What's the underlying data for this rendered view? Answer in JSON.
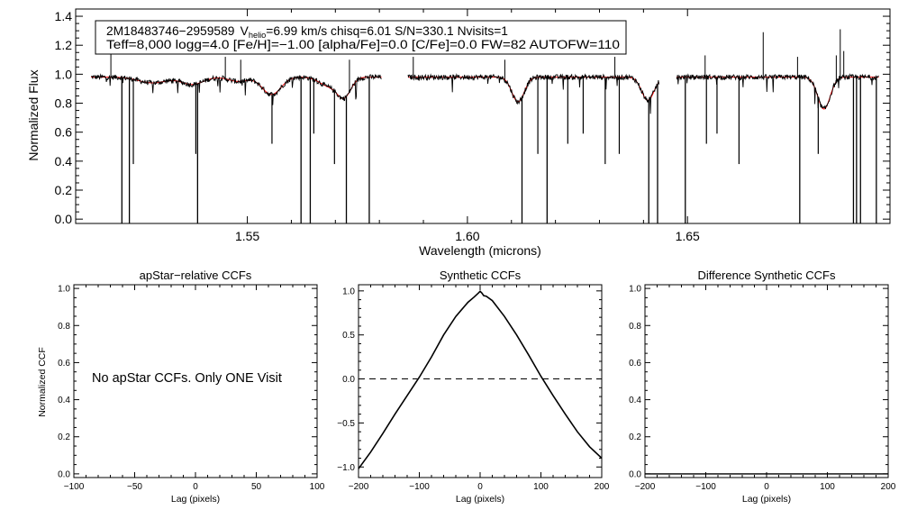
{
  "chart_data": [
    {
      "type": "line",
      "id": "spectrum",
      "xlabel": "Wavelength (microns)",
      "ylabel": "Normalized Flux",
      "xlim": [
        1.511,
        1.696
      ],
      "ylim": [
        -0.03,
        1.45
      ],
      "xticks": [
        1.55,
        1.6,
        1.65
      ],
      "xtick_labels": [
        "1.55",
        "1.60",
        "1.65"
      ],
      "yticks": [
        0.0,
        0.2,
        0.4,
        0.6,
        0.8,
        1.0,
        1.2,
        1.4
      ],
      "ytick_labels": [
        "0.0",
        "0.2",
        "0.4",
        "0.6",
        "0.8",
        "1.0",
        "1.2",
        "1.4"
      ],
      "legend": {
        "line1": {
          "star_id": "2M18483746−2959589",
          "v_main": "V",
          "v_sub": "helio",
          "v_rest": "=6.99 km/s  chisq=6.01  S/N=330.1  Nvisits=1"
        },
        "line2": "Teff=8,000 logg=4.0 [Fe/H]=−1.00 [alpha/Fe]=0.0 [C/Fe]=0.0 FW=82 AUTOFW=110"
      },
      "series": [
        {
          "name": "observed",
          "color": "#000000"
        },
        {
          "name": "model",
          "color": "#ff0000"
        }
      ],
      "chips": [
        [
          1.5145,
          1.5805
        ],
        [
          1.5865,
          1.6435
        ],
        [
          1.6475,
          1.6935
        ]
      ],
      "continuum": 0.98,
      "absorption_lines": [
        {
          "center": 1.5285,
          "depth": 0.04,
          "width": 0.0045
        },
        {
          "center": 1.5375,
          "depth": 0.05,
          "width": 0.0035
        },
        {
          "center": 1.548,
          "depth": 0.03,
          "width": 0.003
        },
        {
          "center": 1.5555,
          "depth": 0.12,
          "width": 0.003
        },
        {
          "center": 1.5685,
          "depth": 0.06,
          "width": 0.003
        },
        {
          "center": 1.572,
          "depth": 0.13,
          "width": 0.0022
        },
        {
          "center": 1.6115,
          "depth": 0.17,
          "width": 0.002
        },
        {
          "center": 1.641,
          "depth": 0.16,
          "width": 0.002
        },
        {
          "center": 1.681,
          "depth": 0.22,
          "width": 0.002
        }
      ],
      "bad_pixels_low": [
        1.5215,
        1.5232,
        1.5387,
        1.5622,
        1.5643,
        1.5725,
        1.5777,
        1.6124,
        1.6181,
        1.6412,
        1.6432,
        1.6495,
        1.6755,
        1.6877,
        1.6884,
        1.6893,
        1.6929
      ],
      "bad_pixels_mid": [
        1.5241,
        1.5383,
        1.5556,
        1.5651,
        1.5698,
        1.616,
        1.6228,
        1.6263,
        1.6313,
        1.6345,
        1.6543,
        1.6567,
        1.6617,
        1.6797
      ],
      "spikes": [
        [
          1.519,
          1.15
        ],
        [
          1.545,
          1.12
        ],
        [
          1.5485,
          1.1
        ],
        [
          1.5732,
          1.1
        ],
        [
          1.5877,
          1.12
        ],
        [
          1.6085,
          1.1
        ],
        [
          1.6335,
          1.12
        ],
        [
          1.654,
          1.13
        ],
        [
          1.6672,
          1.29
        ],
        [
          1.675,
          1.12
        ],
        [
          1.6838,
          1.13
        ],
        [
          1.6847,
          1.31
        ],
        [
          1.6855,
          1.16
        ]
      ]
    },
    {
      "type": "line",
      "id": "apstar",
      "title": "apStar−relative CCFs",
      "xlabel": "Lag (pixels)",
      "ylabel": "Normalized CCF",
      "xlim": [
        -100,
        100
      ],
      "ylim": [
        -0.02,
        1.02
      ],
      "xticks": [
        -100,
        -50,
        0,
        50,
        100
      ],
      "xtick_labels": [
        "−100",
        "−50",
        "0",
        "50",
        "100"
      ],
      "yticks": [
        0.0,
        0.2,
        0.4,
        0.6,
        0.8,
        1.0
      ],
      "ytick_labels": [
        "0.0",
        "0.2",
        "0.4",
        "0.6",
        "0.8",
        "1.0"
      ],
      "annotation": "No apStar CCFs.  Only ONE Visit",
      "series": []
    },
    {
      "type": "line",
      "id": "synthetic",
      "title": "Synthetic CCFs",
      "xlabel": "Lag (pixels)",
      "xlim": [
        -200,
        200
      ],
      "ylim": [
        -1.12,
        1.07
      ],
      "xticks": [
        -200,
        -100,
        0,
        100,
        200
      ],
      "xtick_labels": [
        "−200",
        "−100",
        "0",
        "100",
        "200"
      ],
      "yticks": [
        -1.0,
        -0.5,
        0.0,
        0.5,
        1.0
      ],
      "ytick_labels": [
        "−1.0",
        "−0.5",
        "0.0",
        "0.5",
        "1.0"
      ],
      "zero_line": 0.0,
      "series": [
        {
          "name": "ccf",
          "color": "#000000",
          "x": [
            -200,
            -180,
            -160,
            -140,
            -120,
            -100,
            -80,
            -60,
            -40,
            -20,
            -10,
            -3,
            0,
            3,
            6,
            10,
            20,
            40,
            60,
            80,
            100,
            120,
            140,
            160,
            180,
            200
          ],
          "y": [
            -1.02,
            -0.83,
            -0.62,
            -0.4,
            -0.19,
            0.02,
            0.25,
            0.5,
            0.71,
            0.87,
            0.93,
            0.975,
            0.995,
            0.975,
            0.945,
            0.94,
            0.89,
            0.71,
            0.5,
            0.27,
            0.03,
            -0.19,
            -0.4,
            -0.6,
            -0.77,
            -0.9
          ]
        }
      ]
    },
    {
      "type": "line",
      "id": "difference",
      "title": "Difference Synthetic CCFs",
      "xlabel": "Lag (pixels)",
      "xlim": [
        -200,
        200
      ],
      "ylim": [
        -0.02,
        1.02
      ],
      "xticks": [
        -200,
        -100,
        0,
        100,
        200
      ],
      "xtick_labels": [
        "−200",
        "−100",
        "0",
        "100",
        "200"
      ],
      "yticks": [
        0.0,
        0.2,
        0.4,
        0.6,
        0.8,
        1.0
      ],
      "ytick_labels": [
        "0.0",
        "0.2",
        "0.4",
        "0.6",
        "0.8",
        "1.0"
      ],
      "series": [
        {
          "name": "diff",
          "color": "#000000",
          "x": [
            -200,
            200
          ],
          "y": [
            0.0,
            0.0
          ]
        }
      ]
    }
  ]
}
